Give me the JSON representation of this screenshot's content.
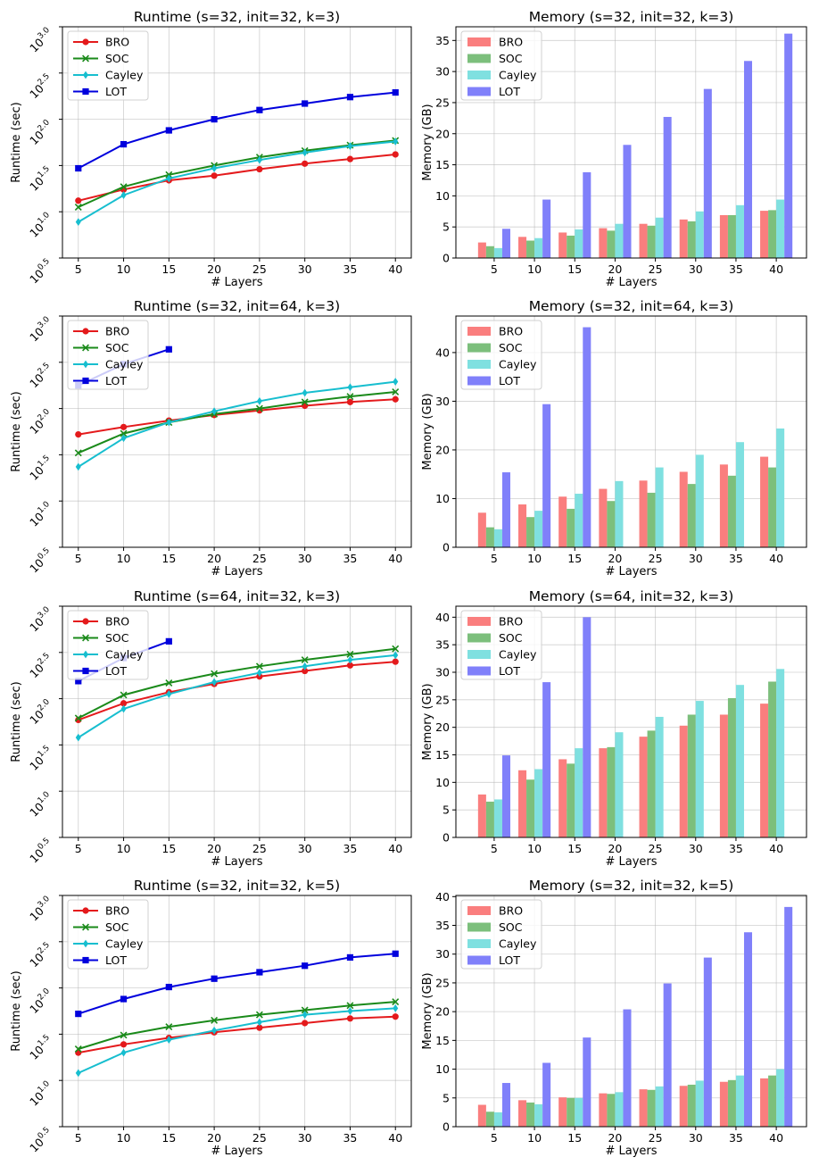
{
  "figure": {
    "colors": {
      "BRO": "#e41a1c",
      "SOC": "#1a8a1a",
      "Cayley": "#17becf",
      "LOT": "#0000dd",
      "bar_BRO": "#fa7e7e",
      "bar_SOC": "#7cbf7c",
      "bar_Cayley": "#7fe0e0",
      "bar_LOT": "#8080fa"
    }
  },
  "chart_data": [
    {
      "type": "line",
      "title": "Runtime (s=32, init=32, k=3)",
      "xlabel": "# Layers",
      "ylabel": "Runtime (sec)",
      "yscale": "log",
      "ylim": [
        0.5,
        3.0
      ],
      "ytick_base": "10",
      "yticks": [
        "0.5",
        "1.0",
        "1.5",
        "2.0",
        "2.5",
        "3.0"
      ],
      "x": [
        5,
        10,
        15,
        20,
        25,
        30,
        35,
        40
      ],
      "grid": true,
      "legend": "top-left",
      "series": [
        {
          "name": "BRO",
          "values": [
            1.12,
            1.24,
            1.34,
            1.39,
            1.46,
            1.52,
            1.57,
            1.62
          ]
        },
        {
          "name": "SOC",
          "values": [
            1.05,
            1.27,
            1.4,
            1.5,
            1.59,
            1.66,
            1.72,
            1.77
          ]
        },
        {
          "name": "Cayley",
          "values": [
            0.89,
            1.18,
            1.36,
            1.47,
            1.56,
            1.64,
            1.71,
            1.76
          ]
        },
        {
          "name": "LOT",
          "values": [
            1.47,
            1.73,
            1.88,
            2.0,
            2.1,
            2.17,
            2.24,
            2.29
          ]
        }
      ]
    },
    {
      "type": "bar",
      "title": "Memory (s=32, init=32, k=3)",
      "xlabel": "# Layers",
      "ylabel": "Memory (GB)",
      "ylim": [
        0,
        37.2
      ],
      "yticks": [
        0,
        5,
        10,
        15,
        20,
        25,
        30,
        35
      ],
      "categories": [
        "5",
        "10",
        "15",
        "20",
        "25",
        "30",
        "35",
        "40"
      ],
      "grid": true,
      "legend": "top-left",
      "series": [
        {
          "name": "BRO",
          "values": [
            2.5,
            3.4,
            4.1,
            4.8,
            5.5,
            6.2,
            6.9,
            7.6
          ]
        },
        {
          "name": "SOC",
          "values": [
            1.9,
            2.8,
            3.6,
            4.4,
            5.2,
            5.9,
            6.9,
            7.7
          ]
        },
        {
          "name": "Cayley",
          "values": [
            1.6,
            3.2,
            4.6,
            5.5,
            6.5,
            7.5,
            8.5,
            9.4
          ]
        },
        {
          "name": "LOT",
          "values": [
            4.7,
            9.4,
            13.8,
            18.2,
            22.7,
            27.2,
            31.7,
            36.1
          ]
        }
      ]
    },
    {
      "type": "line",
      "title": "Runtime (s=32, init=64, k=3)",
      "xlabel": "# Layers",
      "ylabel": "Runtime (sec)",
      "yscale": "log",
      "ylim": [
        0.5,
        3.0
      ],
      "ytick_base": "10",
      "yticks": [
        "0.5",
        "1.0",
        "1.5",
        "2.0",
        "2.5",
        "3.0"
      ],
      "x": [
        5,
        10,
        15,
        20,
        25,
        30,
        35,
        40
      ],
      "grid": true,
      "legend": "top-left",
      "series": [
        {
          "name": "BRO",
          "values": [
            1.72,
            1.8,
            1.87,
            1.93,
            1.98,
            2.03,
            2.07,
            2.1
          ]
        },
        {
          "name": "SOC",
          "values": [
            1.52,
            1.73,
            1.85,
            1.94,
            2.0,
            2.07,
            2.13,
            2.18
          ]
        },
        {
          "name": "Cayley",
          "values": [
            1.37,
            1.68,
            1.85,
            1.97,
            2.08,
            2.17,
            2.23,
            2.29
          ]
        },
        {
          "name": "LOT",
          "values": [
            2.25,
            2.48,
            2.64,
            null,
            null,
            null,
            null,
            null
          ]
        }
      ]
    },
    {
      "type": "bar",
      "title": "Memory (s=32, init=64, k=3)",
      "xlabel": "# Layers",
      "ylabel": "Memory (GB)",
      "ylim": [
        0,
        47.5
      ],
      "yticks": [
        0,
        10,
        20,
        30,
        40
      ],
      "categories": [
        "5",
        "10",
        "15",
        "20",
        "25",
        "30",
        "35",
        "40"
      ],
      "grid": true,
      "legend": "top-left",
      "series": [
        {
          "name": "BRO",
          "values": [
            7.1,
            8.8,
            10.4,
            12.0,
            13.7,
            15.5,
            17.0,
            18.6
          ]
        },
        {
          "name": "SOC",
          "values": [
            4.1,
            6.2,
            7.9,
            9.5,
            11.2,
            13.0,
            14.7,
            16.4
          ]
        },
        {
          "name": "Cayley",
          "values": [
            3.7,
            7.5,
            11.0,
            13.6,
            16.4,
            19.0,
            21.6,
            24.4
          ]
        },
        {
          "name": "LOT",
          "values": [
            15.4,
            29.4,
            45.2,
            null,
            null,
            null,
            null,
            null
          ]
        }
      ]
    },
    {
      "type": "line",
      "title": "Runtime (s=64, init=32, k=3)",
      "xlabel": "# Layers",
      "ylabel": "Runtime (sec)",
      "yscale": "log",
      "ylim": [
        0.5,
        3.0
      ],
      "ytick_base": "10",
      "yticks": [
        "0.5",
        "1.0",
        "1.5",
        "2.0",
        "2.5",
        "3.0"
      ],
      "x": [
        5,
        10,
        15,
        20,
        25,
        30,
        35,
        40
      ],
      "grid": true,
      "legend": "top-left",
      "series": [
        {
          "name": "BRO",
          "values": [
            1.77,
            1.95,
            2.07,
            2.16,
            2.24,
            2.3,
            2.36,
            2.4
          ]
        },
        {
          "name": "SOC",
          "values": [
            1.79,
            2.04,
            2.17,
            2.27,
            2.35,
            2.42,
            2.48,
            2.54
          ]
        },
        {
          "name": "Cayley",
          "values": [
            1.58,
            1.89,
            2.05,
            2.18,
            2.28,
            2.35,
            2.42,
            2.47
          ]
        },
        {
          "name": "LOT",
          "values": [
            2.19,
            2.44,
            2.62,
            null,
            null,
            null,
            null,
            null
          ]
        }
      ]
    },
    {
      "type": "bar",
      "title": "Memory (s=64, init=32, k=3)",
      "xlabel": "# Layers",
      "ylabel": "Memory (GB)",
      "ylim": [
        0,
        42.0
      ],
      "yticks": [
        0,
        5,
        10,
        15,
        20,
        25,
        30,
        35,
        40
      ],
      "categories": [
        "5",
        "10",
        "15",
        "20",
        "25",
        "30",
        "35",
        "40"
      ],
      "grid": true,
      "legend": "top-left",
      "series": [
        {
          "name": "BRO",
          "values": [
            7.8,
            12.2,
            14.2,
            16.2,
            18.3,
            20.3,
            22.3,
            24.3
          ]
        },
        {
          "name": "SOC",
          "values": [
            6.5,
            10.5,
            13.4,
            16.4,
            19.4,
            22.3,
            25.3,
            28.3
          ]
        },
        {
          "name": "Cayley",
          "values": [
            6.9,
            12.4,
            16.2,
            19.1,
            21.9,
            24.8,
            27.7,
            30.6
          ]
        },
        {
          "name": "LOT",
          "values": [
            14.9,
            28.2,
            40.0,
            null,
            null,
            null,
            null,
            null
          ]
        }
      ]
    },
    {
      "type": "line",
      "title": "Runtime (s=32, init=32, k=5)",
      "xlabel": "# Layers",
      "ylabel": "Runtime (sec)",
      "yscale": "log",
      "ylim": [
        0.5,
        3.0
      ],
      "ytick_base": "10",
      "yticks": [
        "0.5",
        "1.0",
        "1.5",
        "2.0",
        "2.5",
        "3.0"
      ],
      "x": [
        5,
        10,
        15,
        20,
        25,
        30,
        35,
        40
      ],
      "grid": true,
      "legend": "top-left",
      "series": [
        {
          "name": "BRO",
          "values": [
            1.3,
            1.39,
            1.46,
            1.52,
            1.57,
            1.62,
            1.67,
            1.69
          ]
        },
        {
          "name": "SOC",
          "values": [
            1.34,
            1.49,
            1.58,
            1.65,
            1.71,
            1.76,
            1.81,
            1.85
          ]
        },
        {
          "name": "Cayley",
          "values": [
            1.08,
            1.3,
            1.44,
            1.54,
            1.63,
            1.71,
            1.75,
            1.78
          ]
        },
        {
          "name": "LOT",
          "values": [
            1.72,
            1.88,
            2.01,
            2.1,
            2.17,
            2.24,
            2.33,
            2.37
          ]
        }
      ]
    },
    {
      "type": "bar",
      "title": "Memory (s=32, init=32, k=5)",
      "xlabel": "# Layers",
      "ylabel": "Memory (GB)",
      "ylim": [
        0,
        40.2
      ],
      "yticks": [
        0,
        5,
        10,
        15,
        20,
        25,
        30,
        35,
        40
      ],
      "categories": [
        "5",
        "10",
        "15",
        "20",
        "25",
        "30",
        "35",
        "40"
      ],
      "grid": true,
      "legend": "top-left",
      "series": [
        {
          "name": "BRO",
          "values": [
            3.8,
            4.6,
            5.1,
            5.8,
            6.5,
            7.1,
            7.8,
            8.4
          ]
        },
        {
          "name": "SOC",
          "values": [
            2.6,
            4.2,
            5.0,
            5.7,
            6.4,
            7.3,
            8.1,
            8.9
          ]
        },
        {
          "name": "Cayley",
          "values": [
            2.5,
            3.9,
            5.0,
            6.0,
            7.0,
            8.0,
            8.9,
            10.0
          ]
        },
        {
          "name": "LOT",
          "values": [
            7.6,
            11.1,
            15.5,
            20.4,
            24.9,
            29.4,
            33.8,
            38.2
          ]
        }
      ]
    }
  ]
}
